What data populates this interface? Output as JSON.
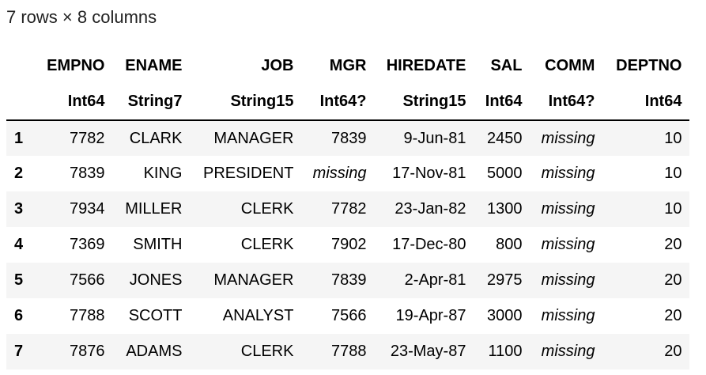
{
  "summary": "7 rows × 8 columns",
  "table": {
    "columns": [
      "EMPNO",
      "ENAME",
      "JOB",
      "MGR",
      "HIREDATE",
      "SAL",
      "COMM",
      "DEPTNO"
    ],
    "types": [
      "Int64",
      "String7",
      "String15",
      "Int64?",
      "String15",
      "Int64",
      "Int64?",
      "Int64"
    ],
    "rows": [
      {
        "index": "1",
        "cells": [
          "7782",
          "CLARK",
          "MANAGER",
          "7839",
          "9-Jun-81",
          "2450",
          "missing",
          "10"
        ]
      },
      {
        "index": "2",
        "cells": [
          "7839",
          "KING",
          "PRESIDENT",
          "missing",
          "17-Nov-81",
          "5000",
          "missing",
          "10"
        ]
      },
      {
        "index": "3",
        "cells": [
          "7934",
          "MILLER",
          "CLERK",
          "7782",
          "23-Jan-82",
          "1300",
          "missing",
          "10"
        ]
      },
      {
        "index": "4",
        "cells": [
          "7369",
          "SMITH",
          "CLERK",
          "7902",
          "17-Dec-80",
          "800",
          "missing",
          "20"
        ]
      },
      {
        "index": "5",
        "cells": [
          "7566",
          "JONES",
          "MANAGER",
          "7839",
          "2-Apr-81",
          "2975",
          "missing",
          "20"
        ]
      },
      {
        "index": "6",
        "cells": [
          "7788",
          "SCOTT",
          "ANALYST",
          "7566",
          "19-Apr-87",
          "3000",
          "missing",
          "20"
        ]
      },
      {
        "index": "7",
        "cells": [
          "7876",
          "ADAMS",
          "CLERK",
          "7788",
          "23-May-87",
          "1100",
          "missing",
          "20"
        ]
      }
    ]
  }
}
